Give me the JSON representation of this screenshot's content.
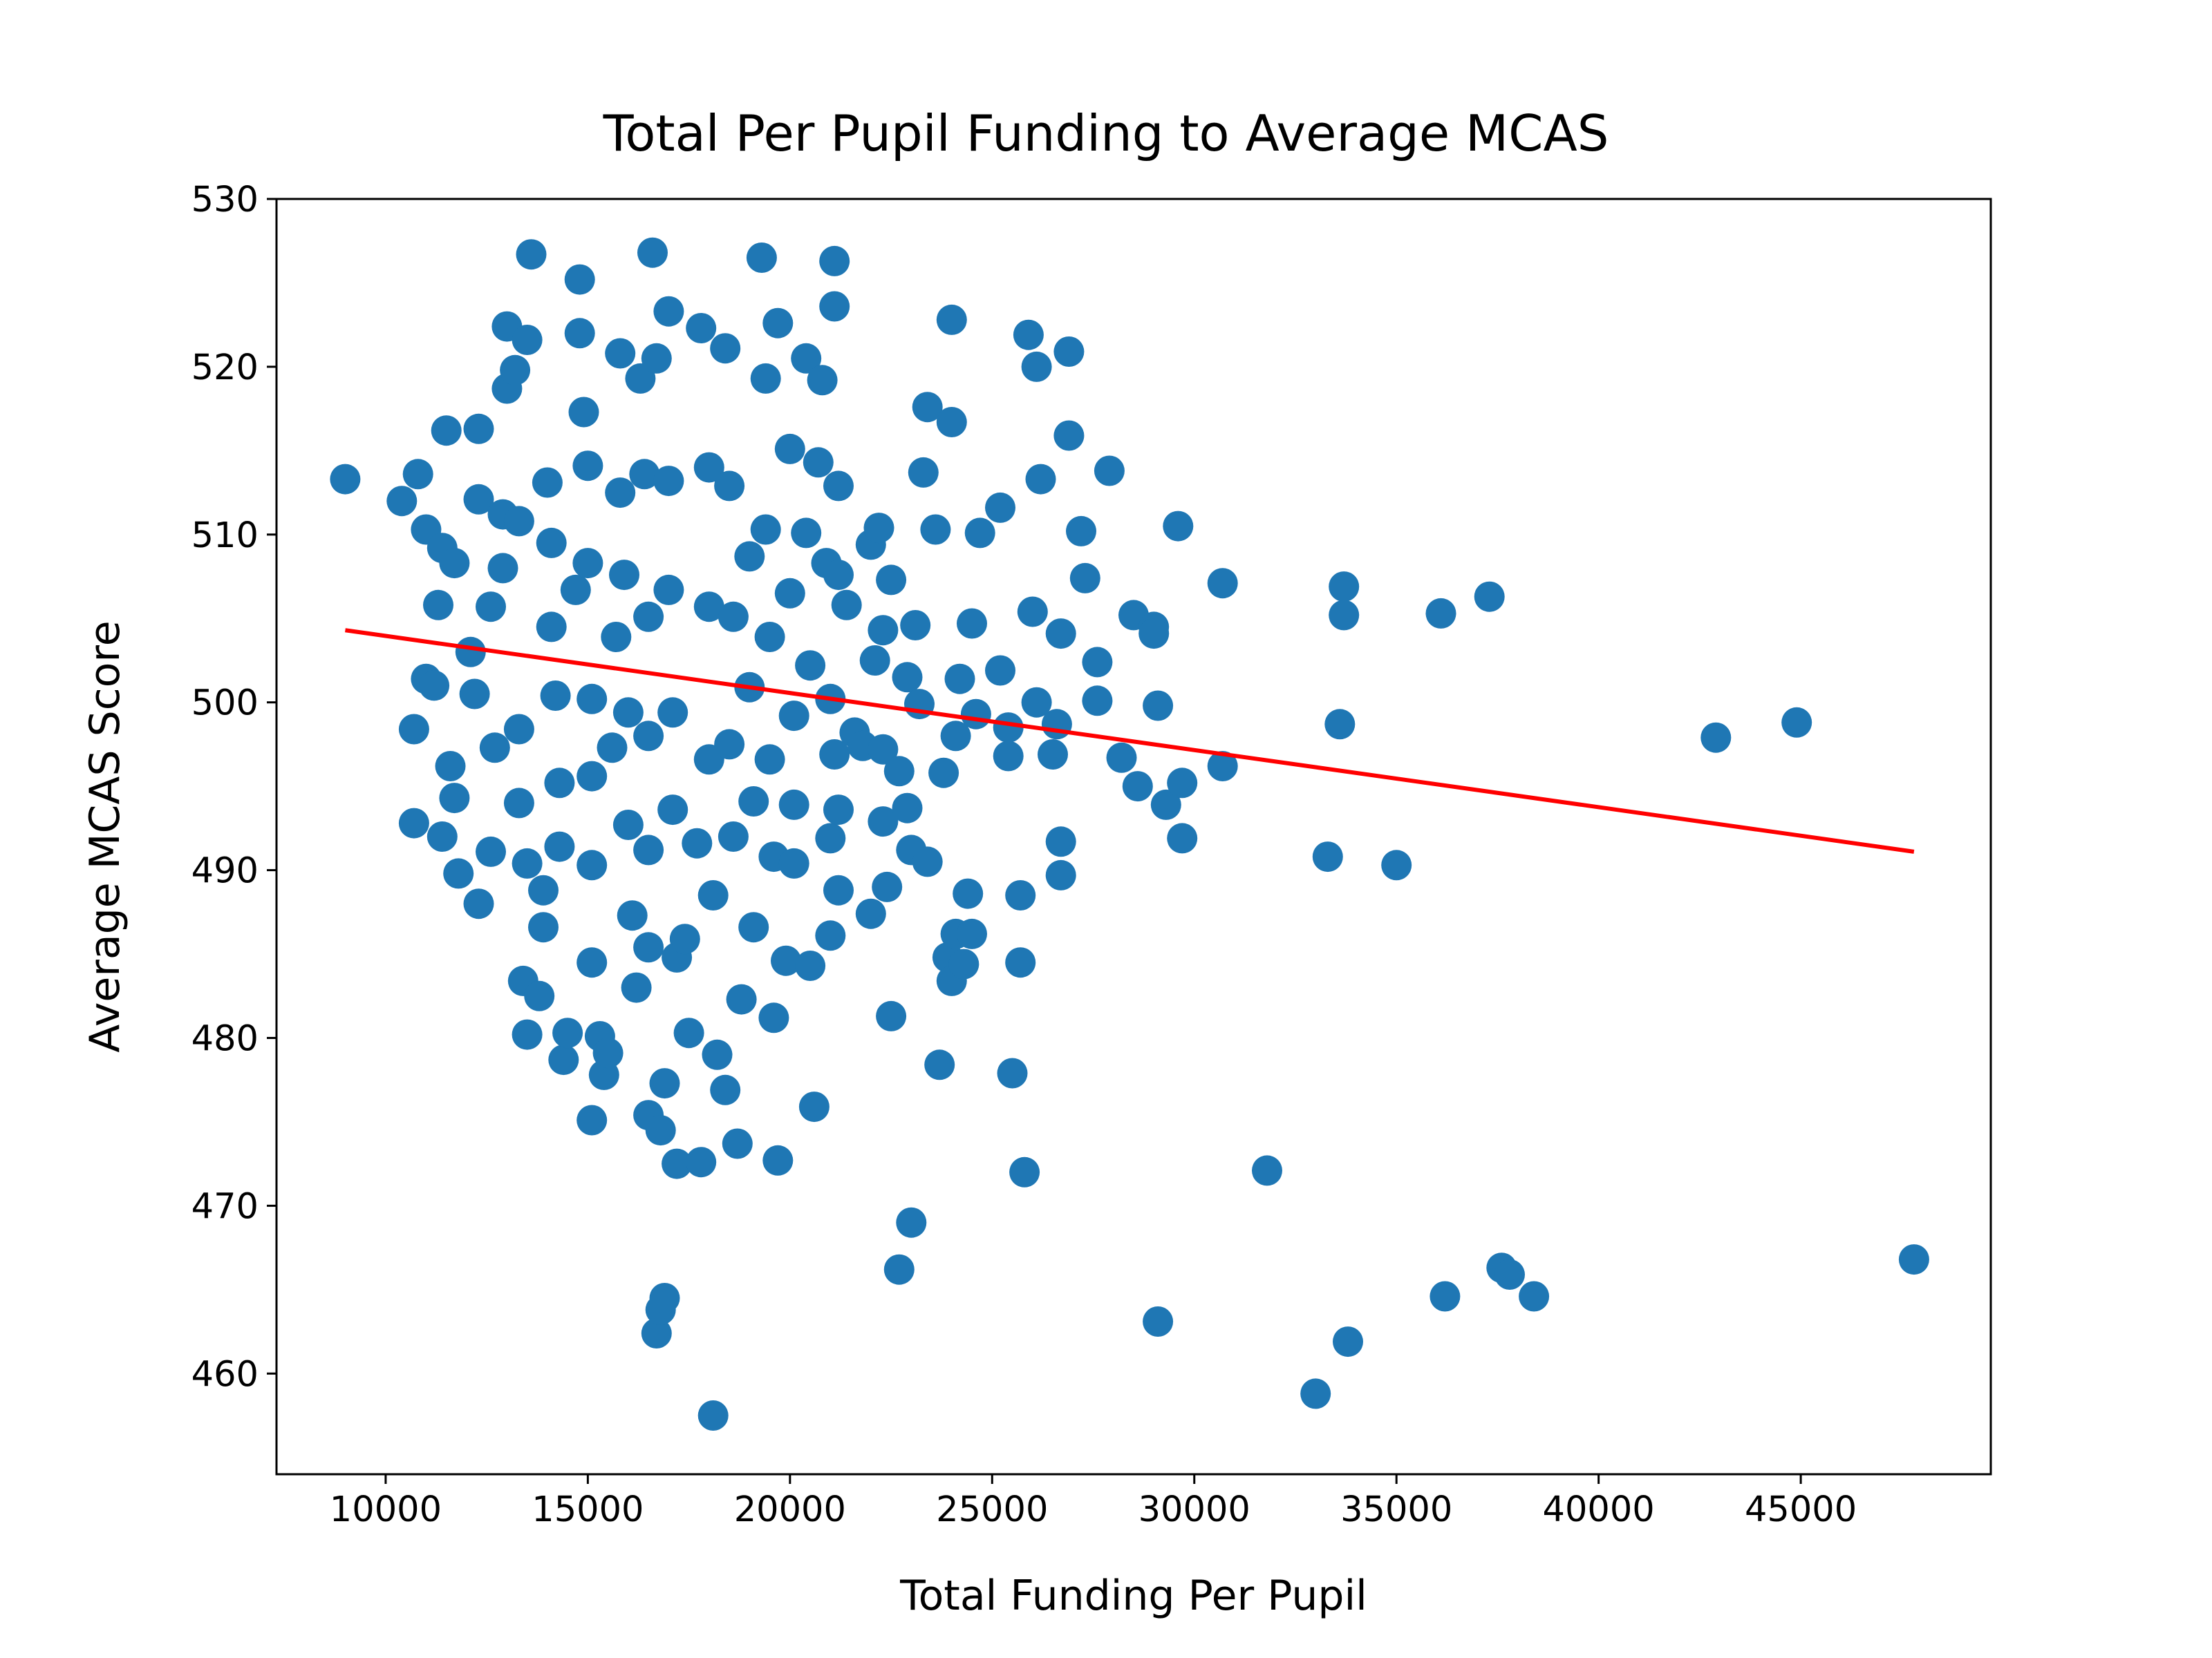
{
  "chart_data": {
    "type": "scatter",
    "title": "Total Per Pupil Funding to Average MCAS",
    "xlabel": "Total Funding Per Pupil",
    "ylabel": "Average MCAS Score",
    "xlim": [
      7300,
      49700
    ],
    "ylim": [
      454,
      530
    ],
    "xticks": [
      10000,
      15000,
      20000,
      25000,
      30000,
      35000,
      40000,
      45000
    ],
    "yticks": [
      460,
      470,
      480,
      490,
      500,
      510,
      520,
      530
    ],
    "grid": false,
    "legend": "none",
    "colors": {
      "points": "#1f77b4",
      "trend": "#ff0000"
    },
    "trend_line": {
      "x": [
        9000,
        47800
      ],
      "y": [
        504.3,
        491.1
      ]
    },
    "points": [
      [
        9000,
        513.3
      ],
      [
        10400,
        512
      ],
      [
        10800,
        513.6
      ],
      [
        10700,
        498.4
      ],
      [
        10700,
        492.8
      ],
      [
        11000,
        510.3
      ],
      [
        11000,
        501.4
      ],
      [
        11200,
        501
      ],
      [
        11300,
        505.8
      ],
      [
        11400,
        509.2
      ],
      [
        11500,
        516.2
      ],
      [
        11400,
        492
      ],
      [
        11600,
        496.2
      ],
      [
        11700,
        494.3
      ],
      [
        11800,
        489.8
      ],
      [
        11700,
        508.3
      ],
      [
        12100,
        503
      ],
      [
        12200,
        500.5
      ],
      [
        12300,
        512.1
      ],
      [
        12300,
        516.3
      ],
      [
        12300,
        488
      ],
      [
        12600,
        491.1
      ],
      [
        12600,
        505.7
      ],
      [
        12700,
        497.3
      ],
      [
        12900,
        508
      ],
      [
        12900,
        511.2
      ],
      [
        13000,
        522.4
      ],
      [
        13000,
        518.7
      ],
      [
        13200,
        519.8
      ],
      [
        13300,
        510.8
      ],
      [
        13300,
        498.4
      ],
      [
        13300,
        494
      ],
      [
        13500,
        521.6
      ],
      [
        13600,
        526.7
      ],
      [
        13500,
        490.4
      ],
      [
        13400,
        483.4
      ],
      [
        13500,
        480.2
      ],
      [
        13800,
        482.5
      ],
      [
        13900,
        486.6
      ],
      [
        13900,
        488.8
      ],
      [
        14000,
        513.1
      ],
      [
        14100,
        509.5
      ],
      [
        14100,
        504.5
      ],
      [
        14200,
        500.4
      ],
      [
        14300,
        495.2
      ],
      [
        14300,
        491.4
      ],
      [
        14400,
        478.7
      ],
      [
        14500,
        480.3
      ],
      [
        14700,
        506.7
      ],
      [
        14800,
        522
      ],
      [
        14800,
        525.2
      ],
      [
        14900,
        517.3
      ],
      [
        15000,
        514.1
      ],
      [
        15000,
        508.3
      ],
      [
        15100,
        500.2
      ],
      [
        15100,
        495.6
      ],
      [
        15100,
        490.3
      ],
      [
        15100,
        484.5
      ],
      [
        15100,
        475.1
      ],
      [
        15300,
        480.1
      ],
      [
        15400,
        477.8
      ],
      [
        15500,
        479.1
      ],
      [
        15600,
        497.3
      ],
      [
        15700,
        503.9
      ],
      [
        15800,
        520.8
      ],
      [
        15800,
        512.5
      ],
      [
        15900,
        507.6
      ],
      [
        16000,
        499.4
      ],
      [
        16000,
        492.7
      ],
      [
        16100,
        487.3
      ],
      [
        16200,
        483
      ],
      [
        16300,
        519.3
      ],
      [
        16400,
        513.6
      ],
      [
        16500,
        505.1
      ],
      [
        16500,
        498
      ],
      [
        16500,
        491.2
      ],
      [
        16500,
        485.4
      ],
      [
        16500,
        475.4
      ],
      [
        16600,
        526.8
      ],
      [
        16700,
        520.5
      ],
      [
        16700,
        462.4
      ],
      [
        16800,
        463.8
      ],
      [
        16900,
        464.5
      ],
      [
        16800,
        474.5
      ],
      [
        16900,
        477.3
      ],
      [
        17000,
        523.3
      ],
      [
        17000,
        513.2
      ],
      [
        17000,
        506.7
      ],
      [
        17100,
        499.4
      ],
      [
        17100,
        493.6
      ],
      [
        17200,
        484.8
      ],
      [
        17200,
        472.5
      ],
      [
        17400,
        485.9
      ],
      [
        17500,
        480.3
      ],
      [
        17700,
        491.6
      ],
      [
        17800,
        522.3
      ],
      [
        17800,
        472.6
      ],
      [
        18000,
        514
      ],
      [
        18000,
        505.7
      ],
      [
        18000,
        496.6
      ],
      [
        18100,
        488.5
      ],
      [
        18200,
        479
      ],
      [
        18100,
        457.5
      ],
      [
        18400,
        476.9
      ],
      [
        18400,
        521.1
      ],
      [
        18500,
        512.9
      ],
      [
        18600,
        505.1
      ],
      [
        18500,
        497.5
      ],
      [
        18600,
        492
      ],
      [
        18700,
        473.7
      ],
      [
        18800,
        482.3
      ],
      [
        19000,
        508.7
      ],
      [
        19000,
        500.9
      ],
      [
        19100,
        494.1
      ],
      [
        19100,
        486.6
      ],
      [
        19300,
        526.5
      ],
      [
        19400,
        519.3
      ],
      [
        19400,
        510.3
      ],
      [
        19500,
        503.9
      ],
      [
        19500,
        496.6
      ],
      [
        19600,
        490.8
      ],
      [
        19600,
        481.2
      ],
      [
        19700,
        522.6
      ],
      [
        19700,
        472.7
      ],
      [
        19900,
        484.6
      ],
      [
        20000,
        515.1
      ],
      [
        20000,
        506.5
      ],
      [
        20100,
        499.2
      ],
      [
        20100,
        493.9
      ],
      [
        20100,
        490.4
      ],
      [
        20400,
        520.5
      ],
      [
        20400,
        510.1
      ],
      [
        20500,
        502.2
      ],
      [
        20500,
        484.3
      ],
      [
        20600,
        475.9
      ],
      [
        20700,
        514.3
      ],
      [
        20800,
        519.2
      ],
      [
        20900,
        508.3
      ],
      [
        21000,
        500.2
      ],
      [
        21000,
        491.9
      ],
      [
        21000,
        486.1
      ],
      [
        21100,
        526.3
      ],
      [
        21100,
        523.6
      ],
      [
        21100,
        496.9
      ],
      [
        21200,
        507.6
      ],
      [
        21200,
        512.9
      ],
      [
        21200,
        493.6
      ],
      [
        21200,
        488.8
      ],
      [
        21400,
        505.8
      ],
      [
        21600,
        498.2
      ],
      [
        21800,
        497.4
      ],
      [
        22000,
        487.4
      ],
      [
        22000,
        509.4
      ],
      [
        22100,
        502.5
      ],
      [
        22200,
        510.4
      ],
      [
        22300,
        504.3
      ],
      [
        22300,
        497.2
      ],
      [
        22300,
        492.9
      ],
      [
        22400,
        489
      ],
      [
        22500,
        507.3
      ],
      [
        22500,
        481.3
      ],
      [
        22700,
        495.9
      ],
      [
        22700,
        466.2
      ],
      [
        22900,
        501.5
      ],
      [
        22900,
        493.7
      ],
      [
        23000,
        469
      ],
      [
        23000,
        491.2
      ],
      [
        23100,
        504.6
      ],
      [
        23200,
        499.9
      ],
      [
        23300,
        513.7
      ],
      [
        23400,
        517.6
      ],
      [
        23400,
        490.5
      ],
      [
        23600,
        510.3
      ],
      [
        23700,
        478.4
      ],
      [
        23800,
        495.8
      ],
      [
        23900,
        484.8
      ],
      [
        24000,
        516.7
      ],
      [
        24000,
        483.4
      ],
      [
        24000,
        522.8
      ],
      [
        24100,
        498
      ],
      [
        24100,
        486.2
      ],
      [
        24200,
        501.4
      ],
      [
        24300,
        484.4
      ],
      [
        24400,
        488.6
      ],
      [
        24500,
        486.2
      ],
      [
        24500,
        504.7
      ],
      [
        24600,
        499.3
      ],
      [
        24700,
        510.1
      ],
      [
        25200,
        511.6
      ],
      [
        25200,
        501.9
      ],
      [
        25400,
        498.5
      ],
      [
        25400,
        496.8
      ],
      [
        25500,
        477.9
      ],
      [
        25700,
        488.5
      ],
      [
        25700,
        484.5
      ],
      [
        25800,
        472
      ],
      [
        25900,
        521.9
      ],
      [
        26000,
        505.4
      ],
      [
        26100,
        520
      ],
      [
        26100,
        500
      ],
      [
        26200,
        513.3
      ],
      [
        26500,
        496.9
      ],
      [
        26600,
        498.7
      ],
      [
        26700,
        491.7
      ],
      [
        26700,
        489.7
      ],
      [
        26700,
        504.1
      ],
      [
        26900,
        520.9
      ],
      [
        26900,
        515.9
      ],
      [
        27200,
        510.2
      ],
      [
        27300,
        507.4
      ],
      [
        27600,
        502.4
      ],
      [
        27600,
        500.1
      ],
      [
        27900,
        513.8
      ],
      [
        28200,
        496.7
      ],
      [
        28500,
        505.2
      ],
      [
        28600,
        495
      ],
      [
        29000,
        504.5
      ],
      [
        29000,
        504.1
      ],
      [
        29100,
        499.8
      ],
      [
        29100,
        463.1
      ],
      [
        29300,
        493.9
      ],
      [
        29600,
        510.5
      ],
      [
        29700,
        495.2
      ],
      [
        29700,
        491.9
      ],
      [
        30700,
        507.1
      ],
      [
        30700,
        496.2
      ],
      [
        31800,
        472.1
      ],
      [
        33000,
        458.8
      ],
      [
        33300,
        490.8
      ],
      [
        33600,
        498.7
      ],
      [
        33700,
        506.9
      ],
      [
        33700,
        505.2
      ],
      [
        33800,
        461.9
      ],
      [
        35000,
        490.3
      ],
      [
        36100,
        505.3
      ],
      [
        36200,
        464.6
      ],
      [
        37300,
        506.3
      ],
      [
        37600,
        466.3
      ],
      [
        37800,
        465.9
      ],
      [
        38400,
        464.6
      ],
      [
        42900,
        497.9
      ],
      [
        44900,
        498.8
      ],
      [
        47800,
        466.8
      ]
    ]
  }
}
